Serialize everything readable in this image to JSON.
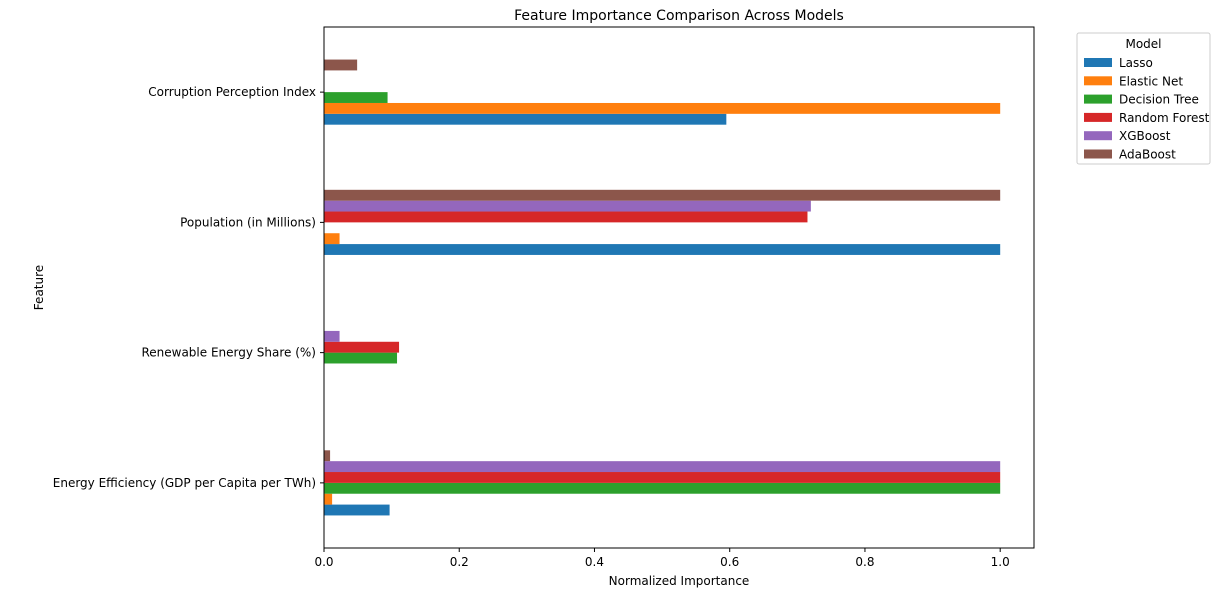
{
  "chart_data": {
    "type": "bar",
    "orientation": "horizontal",
    "title": "Feature Importance Comparison Across Models",
    "xlabel": "Normalized Importance",
    "ylabel": "Feature",
    "xlim": [
      0,
      1.05
    ],
    "xticks": [
      0.0,
      0.2,
      0.4,
      0.6,
      0.8,
      1.0
    ],
    "xtick_labels": [
      "0.0",
      "0.2",
      "0.4",
      "0.6",
      "0.8",
      "1.0"
    ],
    "grid": false,
    "legend": {
      "title": "Model",
      "placement": "outside-top-right"
    },
    "categories": [
      "Energy Efficiency (GDP per Capita per TWh)",
      "Renewable Energy Share (%)",
      "Population (in Millions)",
      "Corruption Perception Index"
    ],
    "series": [
      {
        "name": "Lasso",
        "color": "#1f77b4",
        "values": [
          0.097,
          0.0,
          1.0,
          0.595
        ]
      },
      {
        "name": "Elastic Net",
        "color": "#ff7f0e",
        "values": [
          0.012,
          0.0,
          0.023,
          1.0
        ]
      },
      {
        "name": "Decision Tree",
        "color": "#2ca02c",
        "values": [
          1.0,
          0.108,
          0.0,
          0.094
        ]
      },
      {
        "name": "Random Forest",
        "color": "#d62728",
        "values": [
          1.0,
          0.111,
          0.715,
          0.0
        ]
      },
      {
        "name": "XGBoost",
        "color": "#9467bd",
        "values": [
          1.0,
          0.023,
          0.72,
          0.0
        ]
      },
      {
        "name": "AdaBoost",
        "color": "#8c564b",
        "values": [
          0.009,
          0.0,
          1.0,
          0.049
        ]
      }
    ]
  }
}
